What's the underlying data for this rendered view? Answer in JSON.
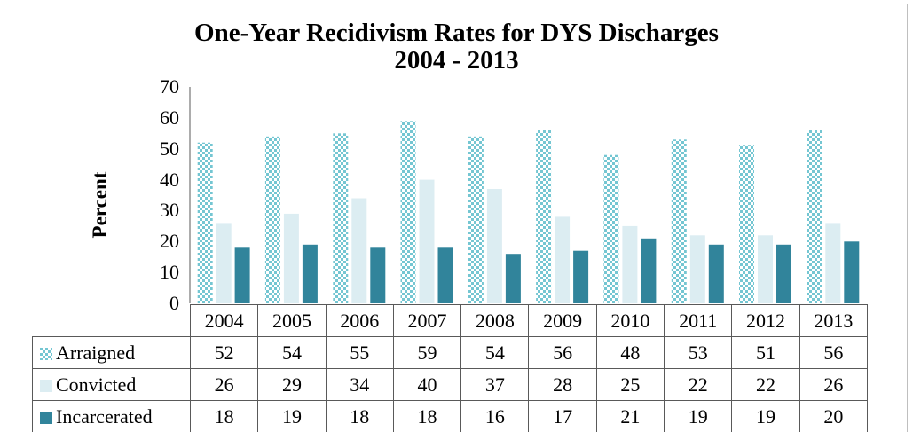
{
  "chart_data": {
    "type": "bar",
    "title": [
      "One-Year Recidivism Rates for DYS Discharges",
      "2004 - 2013"
    ],
    "ylabel": "Percent",
    "xlabel": "",
    "ylim": [
      0,
      70
    ],
    "yticks": [
      0,
      10,
      20,
      30,
      40,
      50,
      60,
      70
    ],
    "grid": false,
    "legend_placement": "data table",
    "categories": [
      "2004",
      "2005",
      "2006",
      "2007",
      "2008",
      "2009",
      "2010",
      "2011",
      "2012",
      "2013"
    ],
    "series": [
      {
        "name": "Arraigned",
        "color": "#74c6d2",
        "pattern": "checker",
        "values": [
          52,
          54,
          55,
          59,
          54,
          56,
          48,
          53,
          51,
          56
        ]
      },
      {
        "name": "Convicted",
        "color": "#dcedf2",
        "pattern": "solid",
        "values": [
          26,
          29,
          34,
          40,
          37,
          28,
          25,
          22,
          22,
          26
        ]
      },
      {
        "name": "Incarcerated",
        "color": "#31849b",
        "pattern": "solid",
        "values": [
          18,
          19,
          18,
          18,
          16,
          17,
          21,
          19,
          19,
          20
        ]
      }
    ]
  }
}
